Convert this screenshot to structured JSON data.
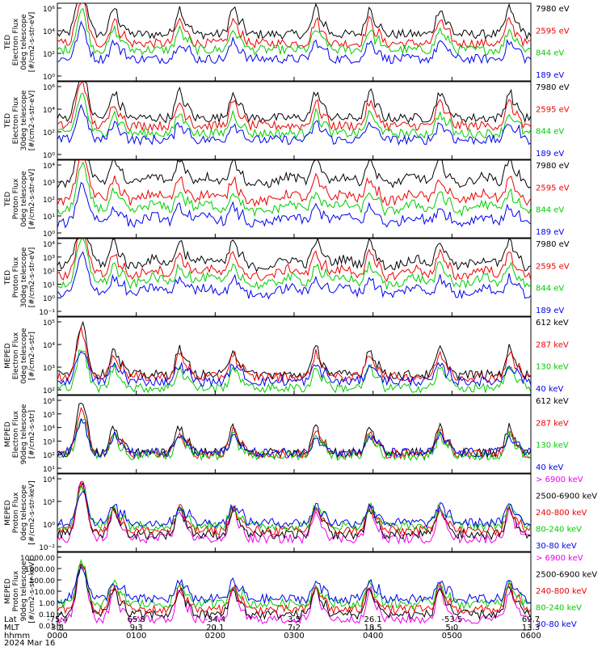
{
  "chart_data": {
    "type": "line",
    "time_axis": {
      "hhmm": [
        "0000",
        "0100",
        "0200",
        "0300",
        "0400",
        "0500",
        "0600"
      ],
      "lat": [
        "-75.4",
        "65.8",
        "-34.4",
        "3.5",
        "26.1",
        "-53.5",
        "69.7"
      ],
      "mlt": [
        "3.8",
        "9.3",
        "20.1",
        "7.2",
        "18.5",
        "5.0",
        "13.3"
      ],
      "row_labels": [
        "Lat",
        "MLT",
        "hhmm"
      ],
      "date": "2024 Mar 16"
    },
    "panels": [
      {
        "ylabel": [
          "TED",
          "Electron Flux",
          "0deg telescope",
          "[#/cm2-s-str-eV]"
        ],
        "ytick_labels": [
          "10⁶",
          "10⁴",
          "10²",
          "10⁰"
        ],
        "log_range": [
          0,
          6
        ],
        "legend": [
          {
            "label": "7980 eV",
            "color": "#000000"
          },
          {
            "label": "2595 eV",
            "color": "#ee0000"
          },
          {
            "label": "844 eV",
            "color": "#00cc00"
          },
          {
            "label": "189 eV",
            "color": "#0000ee"
          }
        ],
        "profile": "ted_e",
        "base_levels": [
          3.6,
          2.9,
          2.4,
          1.7
        ]
      },
      {
        "ylabel": [
          "TED",
          "Electron Flux",
          "30deg telescope",
          "[#/cm2-s-str-eV]"
        ],
        "ytick_labels": [
          "10⁶",
          "10⁴",
          "10²",
          "10⁰"
        ],
        "log_range": [
          0,
          6
        ],
        "legend": [
          {
            "label": "7980 eV",
            "color": "#000000"
          },
          {
            "label": "2595 eV",
            "color": "#ee0000"
          },
          {
            "label": "844 eV",
            "color": "#00cc00"
          },
          {
            "label": "189 eV",
            "color": "#0000ee"
          }
        ],
        "profile": "ted_e",
        "base_levels": [
          3.2,
          2.6,
          2.0,
          1.5
        ]
      },
      {
        "ylabel": [
          "TED",
          "Proton Flux",
          "0deg telescope",
          "[#/cm2-s-str-eV]"
        ],
        "ytick_labels": [
          "10⁴",
          "10³",
          "10²",
          "10¹",
          "10⁰"
        ],
        "log_range": [
          -0.2,
          4.3
        ],
        "legend": [
          {
            "label": "7980 eV",
            "color": "#000000"
          },
          {
            "label": "2595 eV",
            "color": "#ee0000"
          },
          {
            "label": "844 eV",
            "color": "#00cc00"
          },
          {
            "label": "189 eV",
            "color": "#0000ee"
          }
        ],
        "profile": "ted_p",
        "base_levels": [
          2.9,
          1.9,
          1.3,
          0.6
        ]
      },
      {
        "ylabel": [
          "TED",
          "Proton Flux",
          "30deg telescope",
          "[#/cm2-s-str-eV]"
        ],
        "ytick_labels": [
          "10⁴",
          "10³",
          "10²",
          "10¹",
          "10⁰",
          "10⁻¹"
        ],
        "log_range": [
          -1.2,
          4.3
        ],
        "legend": [
          {
            "label": "7980 eV",
            "color": "#000000"
          },
          {
            "label": "2595 eV",
            "color": "#ee0000"
          },
          {
            "label": "844 eV",
            "color": "#00cc00"
          },
          {
            "label": "189 eV",
            "color": "#0000ee"
          }
        ],
        "profile": "ted_p",
        "base_levels": [
          2.3,
          1.6,
          1.0,
          0.3
        ]
      },
      {
        "ylabel": [
          "MEPED",
          "Electron Flux",
          "0deg telescope",
          "[#/cm2-s-str]"
        ],
        "ytick_labels": [
          "10⁵",
          "10⁴",
          "10³",
          "10²"
        ],
        "log_range": [
          1.6,
          5.1
        ],
        "legend": [
          {
            "label": "612 keV",
            "color": "#000000"
          },
          {
            "label": "287 keV",
            "color": "#ee0000"
          },
          {
            "label": "130 keV",
            "color": "#00cc00"
          },
          {
            "label": "40 keV",
            "color": "#0000ee"
          }
        ],
        "profile": "meped_e0",
        "base_levels": [
          2.5,
          2.4,
          1.9,
          2.2
        ]
      },
      {
        "ylabel": [
          "MEPED",
          "Electron Flux",
          "90deg telescope",
          "[#/cm2-s-str]"
        ],
        "ytick_labels": [
          "10⁶",
          "10⁵",
          "10⁴",
          "10³",
          "10²",
          "10¹"
        ],
        "log_range": [
          0.8,
          6.1
        ],
        "legend": [
          {
            "label": "612 keV",
            "color": "#000000"
          },
          {
            "label": "287 keV",
            "color": "#ee0000"
          },
          {
            "label": "130 keV",
            "color": "#00cc00"
          },
          {
            "label": "40 keV",
            "color": "#0000ee"
          }
        ],
        "profile": "meped_e90",
        "base_levels": [
          2.2,
          2.1,
          2.0,
          2.2
        ]
      },
      {
        "ylabel": [
          "MEPED",
          "Proton Flux",
          "0deg telescope",
          "[#/cm2-s-str-keV]"
        ],
        "ytick_labels": [
          "10⁴",
          "10²",
          "10⁰",
          "10⁻²"
        ],
        "log_range": [
          -2.6,
          5.2
        ],
        "legend": [
          {
            "label": "> 6900 keV",
            "color": "#ee00ee"
          },
          {
            "label": "2500-6900 keV",
            "color": "#000000"
          },
          {
            "label": "240-800 keV",
            "color": "#ee0000"
          },
          {
            "label": "80-240 keV",
            "color": "#00cc00"
          },
          {
            "label": "30-80 keV",
            "color": "#0000ee"
          }
        ],
        "profile": "meped_p",
        "base_levels": [
          -1.3,
          -0.9,
          -0.5,
          0.0,
          0.3
        ]
      },
      {
        "ylabel": [
          "MEPED",
          "Proton Flux",
          "90deg telescope",
          "[#/cm2-s-str-keV]"
        ],
        "ytick_labels": [
          "10000.00",
          "1000.00",
          "100.00",
          "10.00",
          "1.00",
          "0.10",
          "0.01"
        ],
        "log_range": [
          -2.2,
          4.3
        ],
        "legend": [
          {
            "label": "> 6900 keV",
            "color": "#ee00ee"
          },
          {
            "label": "2500-6900 keV",
            "color": "#000000"
          },
          {
            "label": "240-800 keV",
            "color": "#ee0000"
          },
          {
            "label": "80-240 keV",
            "color": "#00cc00"
          },
          {
            "label": "30-80 keV",
            "color": "#0000ee"
          }
        ],
        "profile": "meped_p",
        "base_levels": [
          -1.3,
          -0.9,
          -0.5,
          0.0,
          0.4
        ]
      }
    ],
    "passes_hours": [
      0.72,
      1.55,
      2.23,
      3.28,
      3.96,
      4.85,
      5.73
    ],
    "radiation_belt_hour": 0.31
  }
}
